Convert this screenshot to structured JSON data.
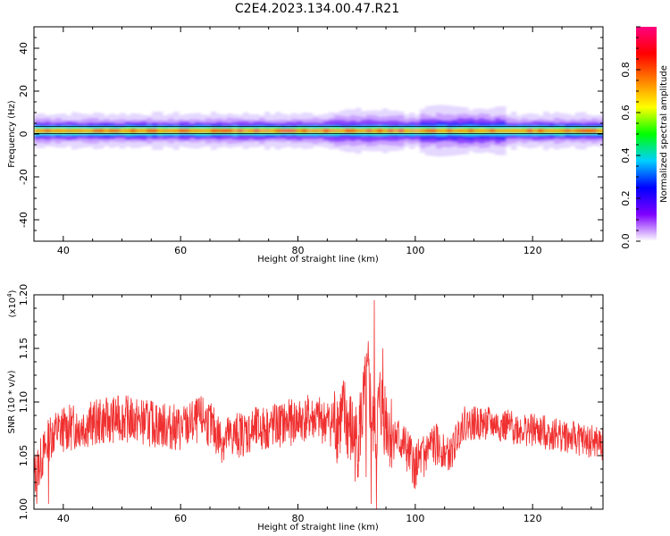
{
  "title": "C2E4.2023.134.00.47.R21",
  "chart_data": [
    {
      "type": "heatmap",
      "xlabel": "Height of straight line (km)",
      "ylabel": "Frequency (Hz)",
      "xlim": [
        35,
        132
      ],
      "ylim": [
        -50,
        50
      ],
      "xticks": [
        40,
        60,
        80,
        100,
        120
      ],
      "yticks": [
        -40,
        -20,
        0,
        20,
        40
      ],
      "band_center_hz": 1.5,
      "colorbar": {
        "label": "Normalized spectral amplitude",
        "range": [
          0,
          1
        ],
        "ticks": [
          0.0,
          0.2,
          0.4,
          0.6,
          0.8
        ],
        "colors": [
          "#ffffff",
          "#7f00ff",
          "#0000ff",
          "#00d0ff",
          "#00ff00",
          "#ffff00",
          "#ff8000",
          "#ff0000",
          "#ff0080"
        ]
      }
    },
    {
      "type": "line",
      "xlabel": "Height of straight line (km)",
      "ylabel": "SNR (10 * v/v)",
      "y_multiplier": "(x10",
      "y_multiplier_exp": "4",
      "y_multiplier_close": ")",
      "xlim": [
        35,
        132
      ],
      "ylim": [
        1.0,
        1.2
      ],
      "xticks": [
        40,
        60,
        80,
        100,
        120
      ],
      "yticks": [
        1.0,
        1.05,
        1.1,
        1.15,
        1.2
      ],
      "line_color": "#f03030",
      "series_trend": [
        [
          35,
          1.03
        ],
        [
          38,
          1.07
        ],
        [
          40,
          1.075
        ],
        [
          45,
          1.08
        ],
        [
          50,
          1.085
        ],
        [
          55,
          1.08
        ],
        [
          60,
          1.075
        ],
        [
          64,
          1.085
        ],
        [
          67,
          1.065
        ],
        [
          70,
          1.07
        ],
        [
          74,
          1.075
        ],
        [
          78,
          1.08
        ],
        [
          82,
          1.085
        ],
        [
          86,
          1.08
        ],
        [
          88,
          1.085
        ],
        [
          90,
          1.06
        ],
        [
          92,
          1.12
        ],
        [
          93,
          1.06
        ],
        [
          94,
          1.1
        ],
        [
          96,
          1.07
        ],
        [
          98,
          1.06
        ],
        [
          100,
          1.04
        ],
        [
          103,
          1.06
        ],
        [
          106,
          1.05
        ],
        [
          108,
          1.08
        ],
        [
          112,
          1.08
        ],
        [
          118,
          1.075
        ],
        [
          124,
          1.07
        ],
        [
          128,
          1.065
        ],
        [
          132,
          1.06
        ]
      ],
      "spikes": [
        [
          35.5,
          1.005
        ],
        [
          37.5,
          1.005
        ],
        [
          93.0,
          1.195
        ],
        [
          92.5,
          1.005
        ],
        [
          93.4,
          1.0
        ],
        [
          91.6,
          1.03
        ],
        [
          94.5,
          1.15
        ],
        [
          99.8,
          1.02
        ],
        [
          101.5,
          1.03
        ]
      ]
    }
  ]
}
